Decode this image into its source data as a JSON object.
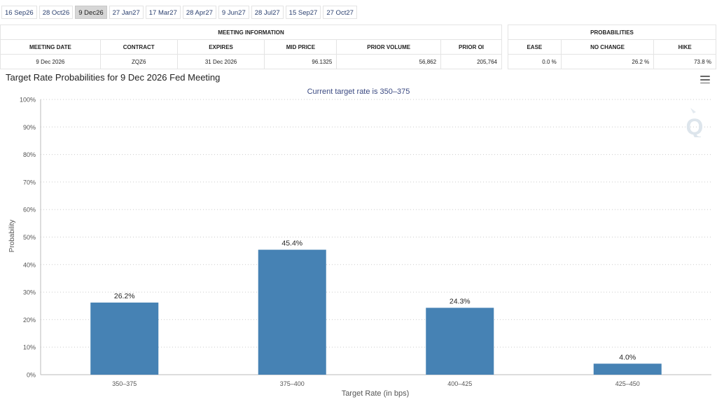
{
  "tabs": [
    {
      "label": "16 Sep26",
      "active": false
    },
    {
      "label": "28 Oct26",
      "active": false
    },
    {
      "label": "9 Dec26",
      "active": true
    },
    {
      "label": "27 Jan27",
      "active": false
    },
    {
      "label": "17 Mar27",
      "active": false
    },
    {
      "label": "28 Apr27",
      "active": false
    },
    {
      "label": "9 Jun27",
      "active": false
    },
    {
      "label": "28 Jul27",
      "active": false
    },
    {
      "label": "15 Sep27",
      "active": false
    },
    {
      "label": "27 Oct27",
      "active": false
    }
  ],
  "meeting_info": {
    "heading": "MEETING INFORMATION",
    "columns": [
      "MEETING DATE",
      "CONTRACT",
      "EXPIRES",
      "MID PRICE",
      "PRIOR VOLUME",
      "PRIOR OI"
    ],
    "row": [
      "9 Dec 2026",
      "ZQZ6",
      "31 Dec 2026",
      "96.1325",
      "56,862",
      "205,764"
    ]
  },
  "probabilities": {
    "heading": "PROBABILITIES",
    "columns": [
      "EASE",
      "NO CHANGE",
      "HIKE"
    ],
    "row": [
      "0.0 %",
      "26.2 %",
      "73.8 %"
    ]
  },
  "chart_title": "Target Rate Probabilities for 9 Dec 2026 Fed Meeting",
  "colors": {
    "bar": "#4682b4",
    "grid": "#cccccc",
    "subtitle": "#3b4a82"
  },
  "chart_data": {
    "type": "bar",
    "title": "Target Rate Probabilities for 9 Dec 2026 Fed Meeting",
    "subtitle": "Current target rate is 350–375",
    "xlabel": "Target Rate (in bps)",
    "ylabel": "Probability",
    "categories": [
      "350–375",
      "375–400",
      "400–425",
      "425–450"
    ],
    "values": [
      26.2,
      45.4,
      24.3,
      4.0
    ],
    "data_labels": [
      "26.2%",
      "45.4%",
      "24.3%",
      "4.0%"
    ],
    "ylim": [
      0,
      100
    ],
    "yticks": [
      0,
      10,
      20,
      30,
      40,
      50,
      60,
      70,
      80,
      90,
      100
    ],
    "ytick_labels": [
      "0%",
      "10%",
      "20%",
      "30%",
      "40%",
      "50%",
      "60%",
      "70%",
      "80%",
      "90%",
      "100%"
    ],
    "grid": true,
    "legend": false
  }
}
